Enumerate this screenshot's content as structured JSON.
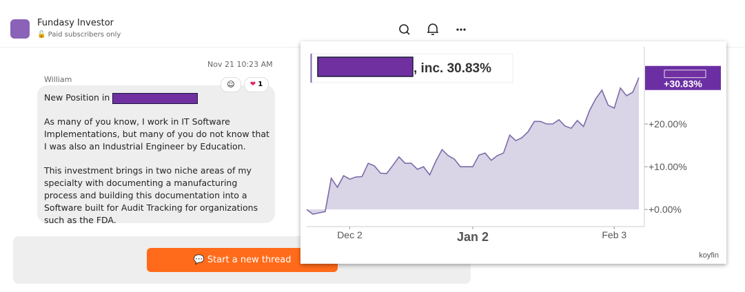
{
  "header": {
    "title": "Fundasy Investor",
    "subtitle": "Paid subscribers only"
  },
  "message": {
    "timestamp": "Nov 21 10:23 AM",
    "author": "William",
    "reaction_count": "1",
    "paragraphs": [
      "New Position in",
      "As many of you know, I work in IT Software Implementations, but many of you do not know that I was also an Industrial Engineer by Education.",
      "This investment brings in two niche areas of my specialty with documenting a manufacturing process and building this documentation into a Software built for Audit Tracking for organizations such as the FDA."
    ]
  },
  "button": "Start a new thread",
  "chart_data": {
    "type": "line",
    "title": ", inc. 30.83%",
    "source": "koyfin",
    "color": "#7b6aa8",
    "fill": "#d9d4e6",
    "x": [
      0,
      1,
      2,
      3,
      4,
      5,
      6,
      7,
      8,
      9,
      10,
      11,
      12,
      13,
      14,
      15,
      16,
      17,
      18,
      19,
      20,
      21,
      22,
      23,
      24,
      25,
      26,
      27,
      28,
      29,
      30,
      31,
      32,
      33,
      34,
      35,
      36,
      37,
      38,
      39,
      40,
      41,
      42,
      43,
      44,
      45,
      46,
      47,
      48,
      49,
      50,
      51,
      52,
      53,
      54
    ],
    "values": [
      0,
      -1.1,
      -0.8,
      -0.5,
      7.3,
      5.2,
      7.9,
      7.1,
      7.6,
      7.7,
      10.8,
      10.2,
      8.5,
      8.4,
      10.3,
      12.3,
      10.8,
      10.8,
      9.4,
      10.0,
      8.1,
      11.3,
      14.0,
      12.6,
      11.8,
      10.0,
      10.0,
      10.0,
      12.7,
      13.2,
      11.5,
      12.6,
      13.2,
      17.4,
      16.1,
      16.8,
      18.2,
      20.6,
      20.6,
      20.0,
      20.0,
      21.0,
      19.5,
      19.0,
      20.8,
      19.4,
      23.2,
      25.9,
      27.9,
      24.4,
      23.7,
      28.4,
      26.6,
      27.4,
      30.83
    ],
    "value_labels": [
      null,
      null,
      null,
      null,
      null,
      null,
      null,
      null,
      null,
      null,
      null,
      null,
      null,
      null,
      null,
      null,
      null,
      null,
      null,
      null,
      null,
      null,
      null,
      null,
      null,
      null,
      null,
      null,
      null,
      null,
      null,
      null,
      null,
      null,
      null,
      null,
      null,
      null,
      null,
      null,
      null,
      null,
      null,
      null,
      null,
      null,
      null,
      null,
      null,
      null,
      null,
      null,
      null,
      null,
      "+30.83%"
    ],
    "xlim": [
      0,
      54
    ],
    "xticks": [
      {
        "value": 7,
        "label": "Dec 2"
      },
      {
        "value": 27,
        "label": "Jan 2"
      },
      {
        "value": 50,
        "label": "Feb 3"
      }
    ],
    "ylim": [
      -4,
      39
    ],
    "yticks": [
      {
        "value": 0,
        "label": "+0.00%"
      },
      {
        "value": 10,
        "label": "+10.00%"
      },
      {
        "value": 20,
        "label": "+20.00%"
      }
    ],
    "badge_color": "#6b2fa3"
  }
}
